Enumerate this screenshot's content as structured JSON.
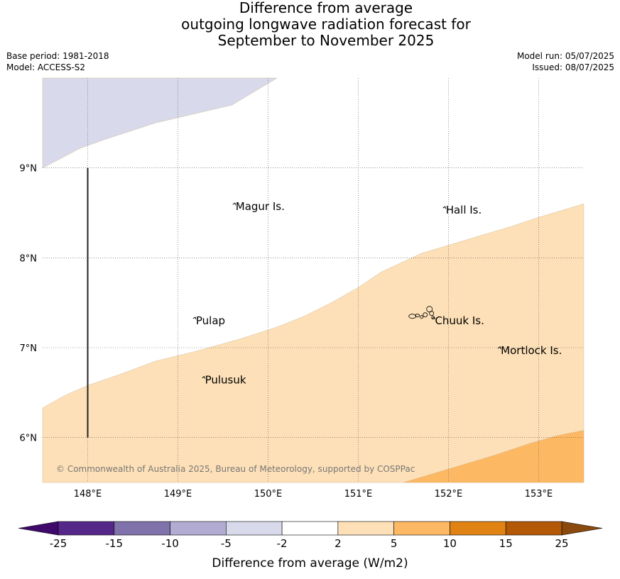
{
  "title": {
    "line1": "Difference from average",
    "line2": "outgoing longwave radiation forecast for",
    "line3": "September to November 2025"
  },
  "meta": {
    "base_period": "Base period: 1981-2018",
    "model": "Model: ACCESS-S2",
    "model_run": "Model run: 05/07/2025",
    "issued": "Issued: 08/07/2025"
  },
  "map": {
    "lon_range": [
      147.5,
      153.5
    ],
    "lat_range": [
      5.5,
      10.0
    ],
    "lon_ticks": [
      {
        "value": 148,
        "label": "148°E"
      },
      {
        "value": 149,
        "label": "149°E"
      },
      {
        "value": 150,
        "label": "150°E"
      },
      {
        "value": 151,
        "label": "151°E"
      },
      {
        "value": 152,
        "label": "152°E"
      },
      {
        "value": 153,
        "label": "153°E"
      }
    ],
    "lat_ticks": [
      {
        "value": 9,
        "label": "9°N"
      },
      {
        "value": 8,
        "label": "8°N"
      },
      {
        "value": 7,
        "label": "7°N"
      },
      {
        "value": 6,
        "label": "6°N"
      }
    ],
    "places": [
      {
        "name": "Magur Is.",
        "lon": 149.64,
        "lat": 8.57
      },
      {
        "name": "Hall Is.",
        "lon": 151.97,
        "lat": 8.53
      },
      {
        "name": "Pulap",
        "lon": 149.2,
        "lat": 7.3
      },
      {
        "name": "Chuuk Is.",
        "lon": 151.85,
        "lat": 7.3
      },
      {
        "name": "Mortlock Is.",
        "lon": 152.58,
        "lat": 6.97
      },
      {
        "name": "Pulusuk",
        "lon": 149.3,
        "lat": 6.64
      }
    ],
    "copyright": "© Commonwealth of Australia 2025, Bureau of Meteorology, supported by COSPPac",
    "regions": [
      {
        "category": "-5 to -2",
        "color": "#d8d9ea",
        "points": [
          [
            147.5,
            9.0
          ],
          [
            147.92,
            9.22
          ],
          [
            148.2,
            9.32
          ],
          [
            148.75,
            9.5
          ],
          [
            149.6,
            9.7
          ],
          [
            150.1,
            10.0
          ],
          [
            147.5,
            10.0
          ]
        ]
      },
      {
        "category": "2 to 5",
        "color": "#fde0b7",
        "points": [
          [
            147.5,
            6.33
          ],
          [
            147.75,
            6.47
          ],
          [
            148.0,
            6.58
          ],
          [
            148.35,
            6.7
          ],
          [
            148.75,
            6.85
          ],
          [
            149.2,
            6.96
          ],
          [
            149.7,
            7.1
          ],
          [
            150.1,
            7.23
          ],
          [
            150.4,
            7.35
          ],
          [
            150.7,
            7.5
          ],
          [
            151.0,
            7.67
          ],
          [
            151.25,
            7.84
          ],
          [
            151.7,
            8.05
          ],
          [
            152.2,
            8.2
          ],
          [
            152.7,
            8.35
          ],
          [
            153.0,
            8.45
          ],
          [
            153.5,
            8.6
          ],
          [
            153.5,
            5.5
          ],
          [
            147.5,
            5.5
          ]
        ]
      },
      {
        "category": "5 to 10",
        "color": "#fdb863",
        "points": [
          [
            151.5,
            5.5
          ],
          [
            152.5,
            5.8
          ],
          [
            152.8,
            5.9
          ],
          [
            152.92,
            5.94
          ],
          [
            153.2,
            6.02
          ],
          [
            153.5,
            6.08
          ],
          [
            153.5,
            5.5
          ]
        ]
      }
    ],
    "transect": {
      "lon": 148.0,
      "lat_start": 9.0,
      "lat_end": 6.0
    }
  },
  "colorbar": {
    "label": "Difference from average (W/m2)",
    "ticks": [
      "-25",
      "-15",
      "-10",
      "-5",
      "-2",
      "2",
      "5",
      "10",
      "15",
      "25"
    ],
    "under_color": "#3f0a6c",
    "over_color": "#8a4a0e",
    "colors": [
      "#542788",
      "#8073ac",
      "#b2abd2",
      "#d8daeb",
      "#ffffff",
      "#fde0b7",
      "#fdb863",
      "#e08214",
      "#b35806"
    ]
  }
}
